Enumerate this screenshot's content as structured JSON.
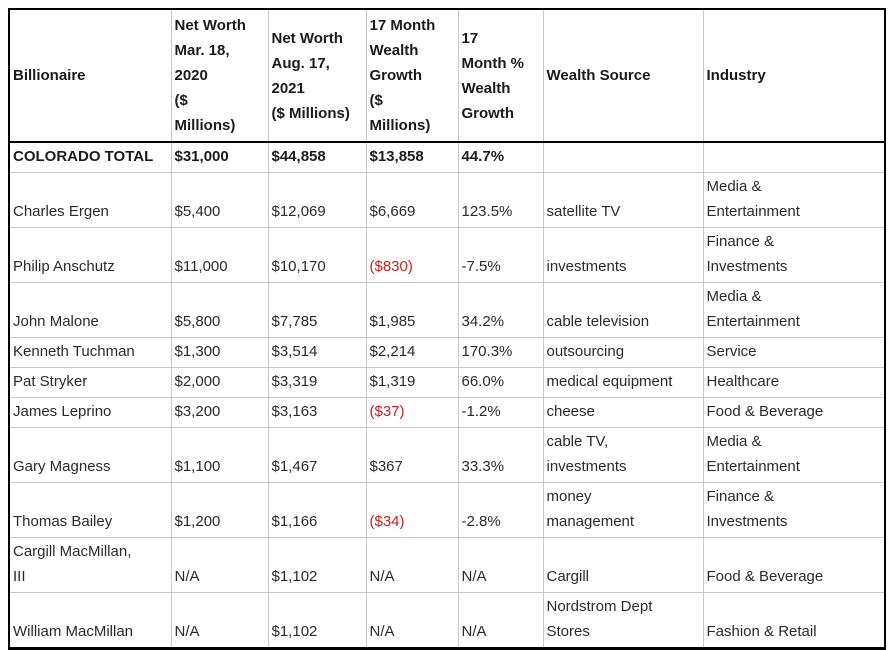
{
  "accent_colors": {
    "negative_value": "#cc2222",
    "text": "#2b2b2b",
    "outer_border": "#000000",
    "inner_border": "#c9c9c9",
    "background": "#ffffff"
  },
  "chart_data": {
    "type": "table",
    "title": "Colorado billionaires wealth growth table",
    "columns": [
      "Billionaire",
      "Net Worth\nMar. 18,\n2020\n($\nMillions)",
      "Net Worth\nAug. 17,\n2021\n($ Millions)",
      "17 Month\nWealth\nGrowth\n($\nMillions)",
      "17\nMonth %\nWealth\nGrowth",
      "Wealth Source",
      "Industry"
    ],
    "rows": [
      {
        "bold": true,
        "negative_cols": [],
        "cells": [
          "COLORADO TOTAL",
          "$31,000",
          "$44,858",
          "$13,858",
          "44.7%",
          "",
          ""
        ]
      },
      {
        "bold": false,
        "negative_cols": [],
        "cells": [
          "Charles Ergen",
          "$5,400",
          "$12,069",
          "$6,669",
          "123.5%",
          "satellite TV",
          "Media &\nEntertainment"
        ]
      },
      {
        "bold": false,
        "negative_cols": [
          3
        ],
        "cells": [
          "Philip Anschutz",
          "$11,000",
          "$10,170",
          "($830)",
          "-7.5%",
          "investments",
          "Finance &\nInvestments"
        ]
      },
      {
        "bold": false,
        "negative_cols": [],
        "cells": [
          "John Malone",
          "$5,800",
          "$7,785",
          "$1,985",
          "34.2%",
          "cable television",
          "Media &\nEntertainment"
        ]
      },
      {
        "bold": false,
        "negative_cols": [],
        "cells": [
          "Kenneth Tuchman",
          "$1,300",
          "$3,514",
          "$2,214",
          "170.3%",
          "outsourcing",
          "Service"
        ]
      },
      {
        "bold": false,
        "negative_cols": [],
        "cells": [
          "Pat Stryker",
          "$2,000",
          "$3,319",
          "$1,319",
          "66.0%",
          "medical equipment",
          "Healthcare"
        ]
      },
      {
        "bold": false,
        "negative_cols": [
          3
        ],
        "cells": [
          "James Leprino",
          "$3,200",
          "$3,163",
          "($37)",
          "-1.2%",
          "cheese",
          "Food & Beverage"
        ]
      },
      {
        "bold": false,
        "negative_cols": [],
        "cells": [
          "Gary Magness",
          "$1,100",
          "$1,467",
          "$367",
          "33.3%",
          "cable TV,\ninvestments",
          "Media &\nEntertainment"
        ]
      },
      {
        "bold": false,
        "negative_cols": [
          3
        ],
        "cells": [
          "Thomas Bailey",
          "$1,200",
          "$1,166",
          "($34)",
          "-2.8%",
          "money\nmanagement",
          "Finance &\nInvestments"
        ]
      },
      {
        "bold": false,
        "negative_cols": [],
        "cells": [
          "Cargill MacMillan,\nIII",
          "N/A",
          "$1,102",
          "N/A",
          "N/A",
          "Cargill",
          "Food & Beverage"
        ]
      },
      {
        "bold": false,
        "negative_cols": [],
        "cells": [
          "William MacMillan",
          "N/A",
          "$1,102",
          "N/A",
          "N/A",
          "Nordstrom Dept\nStores",
          "Fashion & Retail"
        ]
      }
    ]
  }
}
